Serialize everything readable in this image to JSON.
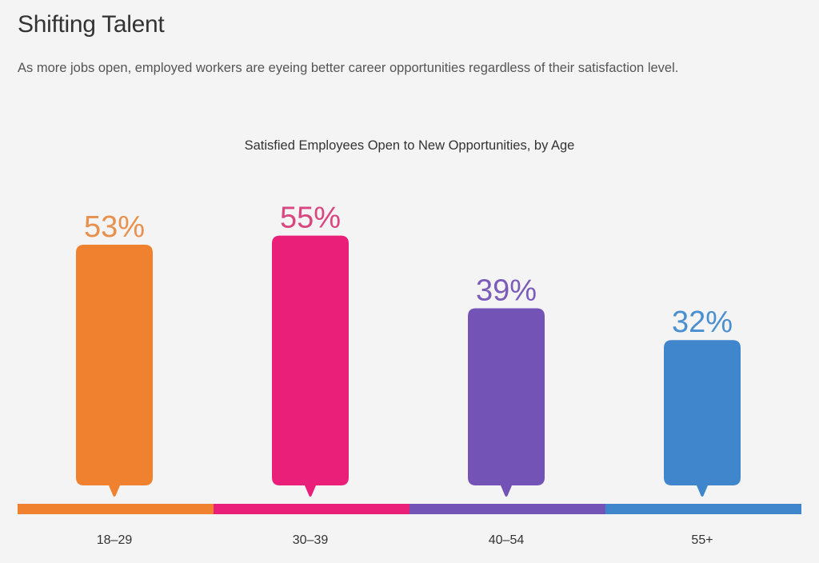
{
  "header": {
    "title": "Shifting Talent",
    "subtitle": "As more jobs open, employed workers are eyeing better career opportunities regardless of their satisfaction level."
  },
  "chart_data": {
    "type": "bar",
    "title": "Satisfied Employees Open to New Opportunities, by Age",
    "xlabel": "",
    "ylabel": "",
    "ylim": [
      0,
      100
    ],
    "unit": "%",
    "grid": false,
    "legend": "none",
    "categories": [
      "18–29",
      "30–39",
      "40–54",
      "55+"
    ],
    "values": [
      53,
      55,
      39,
      32
    ],
    "data_labels": [
      "53%",
      "55%",
      "39%",
      "32%"
    ],
    "colors": [
      "#f0812f",
      "#ea1f7a",
      "#7353b6",
      "#3f86cc"
    ],
    "label_colors": [
      "#e8914e",
      "#d8477f",
      "#7b5cb8",
      "#4a8fd0"
    ]
  }
}
